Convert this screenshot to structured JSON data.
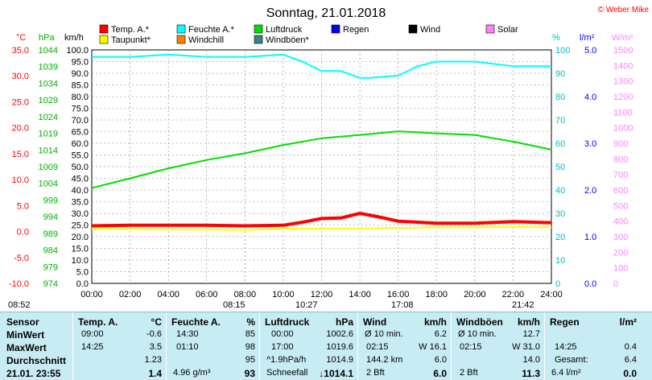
{
  "title": "Sonntag, 21.01.2018",
  "copyright": "© Weber Mike",
  "colors": {
    "temp": "#ff0000",
    "dew": "#ffff00",
    "humidity": "#00ffff",
    "windchill": "#ff8000",
    "pressure": "#00e000",
    "gust": "#408080",
    "rain": "#0000ff",
    "wind": "#000000",
    "solar": "#ff80ff",
    "grid": "#808080"
  },
  "legend": [
    {
      "label": "Temp. A.*",
      "color": "#ff0000"
    },
    {
      "label": "Taupunkt*",
      "color": "#ffff00"
    },
    {
      "label": "Feuchte A.*",
      "color": "#00ffff"
    },
    {
      "label": "Windchill",
      "color": "#ff8000"
    },
    {
      "label": "Luftdruck",
      "color": "#00e000"
    },
    {
      "label": "Windböen*",
      "color": "#408080"
    },
    {
      "label": "Regen",
      "color": "#0000ff"
    },
    {
      "label": "Wind",
      "color": "#000000"
    },
    {
      "label": "Solar",
      "color": "#ff80ff"
    }
  ],
  "chart_data": {
    "type": "line",
    "x_ticks": [
      "00:00",
      "02:00",
      "04:00",
      "06:00",
      "08:00",
      "10:00",
      "12:00",
      "14:00",
      "16:00",
      "18:00",
      "20:00",
      "22:00",
      "24:00"
    ],
    "axes": {
      "temp_c": {
        "unit": "°C",
        "ticks": [
          "35.0",
          "30.0",
          "25.0",
          "20.0",
          "15.0",
          "10.0",
          "5.0",
          "0.0",
          "-5.0",
          "-10.0"
        ],
        "range": [
          -10,
          35
        ]
      },
      "pressure_hpa": {
        "unit": "hPa",
        "ticks": [
          "1044",
          "1039",
          "1034",
          "1029",
          "1024",
          "1019",
          "1014",
          "1009",
          "1004",
          "999",
          "994",
          "989",
          "984",
          "979",
          "974"
        ],
        "range": [
          974,
          1044
        ]
      },
      "wind_kmh": {
        "unit": "km/h",
        "ticks": [
          "100.0",
          "95.0",
          "90.0",
          "85.0",
          "80.0",
          "75.0",
          "70.0",
          "65.0",
          "60.0",
          "55.0",
          "50.0",
          "45.0",
          "40.0",
          "35.0",
          "30.0",
          "25.0",
          "20.0",
          "15.0",
          "10.0",
          "5.0",
          "0.0"
        ],
        "range": [
          0,
          100
        ]
      },
      "humidity_pct": {
        "unit": "%",
        "ticks": [
          "100",
          "90",
          "80",
          "70",
          "60",
          "50",
          "40",
          "30",
          "20",
          "10",
          "0"
        ],
        "range": [
          0,
          100
        ]
      },
      "rain_lm2": {
        "unit": "l/m²",
        "ticks": [
          "5.0",
          "4.0",
          "3.0",
          "2.0",
          "1.0",
          "0.0"
        ],
        "range": [
          0,
          5
        ]
      },
      "solar_wm2": {
        "unit": "W/m²",
        "ticks": [
          "1500",
          "1400",
          "1300",
          "1200",
          "1100",
          "1000",
          "900",
          "800",
          "700",
          "600",
          "500",
          "400",
          "300",
          "200",
          "100",
          "0"
        ],
        "range": [
          0,
          1500
        ]
      }
    },
    "series": [
      {
        "name": "Temp. A.*",
        "axis": "temp_c",
        "x": [
          0,
          2,
          4,
          6,
          8,
          10,
          11,
          12,
          13,
          14,
          15,
          16,
          18,
          20,
          22,
          24
        ],
        "values": [
          1.1,
          1.2,
          1.2,
          1.2,
          1.1,
          1.2,
          1.8,
          2.5,
          2.6,
          3.5,
          2.8,
          2.0,
          1.6,
          1.6,
          1.9,
          1.7
        ]
      },
      {
        "name": "Taupunkt*",
        "axis": "temp_c",
        "x": [
          0,
          4,
          8,
          10,
          12,
          14,
          16,
          18,
          20,
          22,
          24
        ],
        "values": [
          0.5,
          0.4,
          0.3,
          0.5,
          0.6,
          0.6,
          0.7,
          0.8,
          0.8,
          0.9,
          0.8
        ]
      },
      {
        "name": "Feuchte A.*",
        "axis": "humidity_pct",
        "x": [
          0,
          2,
          4,
          6,
          8,
          10,
          11,
          12,
          13,
          14,
          14.5,
          16,
          17,
          18,
          20,
          22,
          24
        ],
        "values": [
          97,
          97,
          98,
          97,
          97,
          98,
          95,
          91,
          91,
          88,
          88,
          89,
          93,
          95,
          95,
          93,
          93
        ]
      },
      {
        "name": "Luftdruck",
        "axis": "pressure_hpa",
        "x": [
          0,
          2,
          4,
          6,
          8,
          10,
          12,
          14,
          16,
          18,
          20,
          22,
          24
        ],
        "values": [
          1002.6,
          1005.5,
          1008.5,
          1011.0,
          1013.0,
          1015.5,
          1017.5,
          1018.5,
          1019.6,
          1019.0,
          1018.5,
          1016.5,
          1014.1
        ]
      }
    ],
    "time_markers": {
      "sunrise_left": "08:52",
      "sunrise": "08:15",
      "moon1": "10:27",
      "sunset": "17:08",
      "moon2": "21:42"
    }
  },
  "stats": {
    "sensor": {
      "header": "Sensor",
      "rows": [
        "MinWert",
        "MaxWert",
        "Durchschnitt",
        "21.01. 23:55"
      ]
    },
    "temp": {
      "header": "Temp. A.",
      "unit": "°C",
      "min_time": "09:00",
      "min": "-0.6",
      "max_time": "14:25",
      "max": "3.5",
      "avg": "1.23",
      "current": "1.4"
    },
    "humidity": {
      "header": "Feuchte A.",
      "unit": "%",
      "min_time": "14:30",
      "min": "85",
      "max_time": "01:10",
      "max": "98",
      "avg": "95",
      "abs": "4.96 g/m³",
      "current": "93"
    },
    "pressure": {
      "header": "Luftdruck",
      "unit": "hPa",
      "min_time": "00:00",
      "min": "1002.6",
      "max_time": "17:00",
      "max": "1019.6",
      "trend": "^1.9hPa/h",
      "trend_val": "1014.9",
      "forecast": "Schneefall",
      "current": "↓1014.1"
    },
    "wind": {
      "header": "Wind",
      "unit": "km/h",
      "avg_label": "Ø 10 min.",
      "avg_val": "6.2",
      "max_time": "02:15",
      "max_dir": "W 16.1",
      "run": "144.2 km",
      "run_val": "6.0",
      "bft": "2 Bft",
      "current": "6.0"
    },
    "gust": {
      "header": "Windböen",
      "unit": "km/h",
      "avg_label": "Ø 10 min.",
      "avg_val": "12.7",
      "max_time": "02:15",
      "max_dir": "W 31.0",
      "avg": "14.0",
      "bft": "2 Bft",
      "current": "11.3"
    },
    "rain": {
      "header": "Regen",
      "unit": "l/m²",
      "max_time": "14:25",
      "max": "0.4",
      "total_label": "Gesamt:",
      "total": "6.4",
      "rate": "6.4 l/m²",
      "current": "0.0"
    }
  }
}
